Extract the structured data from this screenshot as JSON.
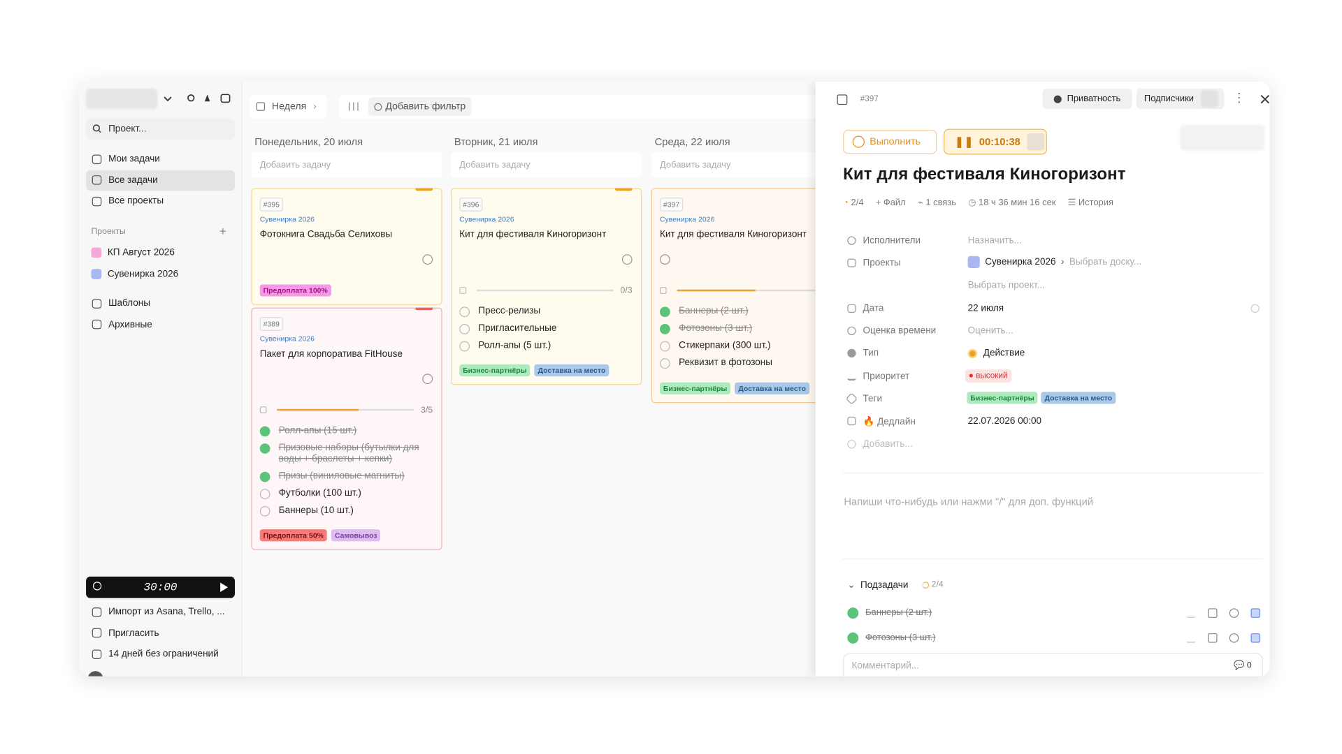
{
  "sidebar": {
    "search": "Проект...",
    "nav": [
      "Мои задачи",
      "Все задачи",
      "Все проекты"
    ],
    "projects_heading": "Проекты",
    "projects": [
      {
        "name": "КП Август 2026",
        "color": "#f6a8d8"
      },
      {
        "name": "Сувенирка 2026",
        "color": "#a9b8f0"
      }
    ],
    "extra": [
      "Шаблоны",
      "Архивные"
    ],
    "timer": "30:00",
    "footer": [
      "Импорт из Asana, Trello, ...",
      "Пригласить",
      "14 дней без ограничений"
    ]
  },
  "toolbar": {
    "view": "Неделя",
    "filter": "Добавить фильтр"
  },
  "columns": [
    {
      "day": "Понедельник, 20 июля",
      "add": "Добавить задачу",
      "cards": [
        {
          "id": "#395",
          "project": "Сувенирка 2026",
          "title": "Фотокнига Свадьба Селиховы",
          "subtasks": [],
          "tags": [
            {
              "text": "Предоплата 100%",
              "color": "#f59be6",
              "text_color": "#a4128a"
            }
          ]
        },
        {
          "id": "#389",
          "project": "Сувенирка 2026",
          "title": "Пакет для корпоратива FitHouse",
          "progress": "3/5",
          "subtasks": [
            {
              "text": "Ролл-апы (15 шт.)",
              "done": true
            },
            {
              "text": "Призовые наборы (бутылки для воды + браслеты + кепки)",
              "done": true
            },
            {
              "text": "Призы (виниловые магниты)",
              "done": true
            },
            {
              "text": "Футболки (100 шт.)",
              "done": false
            },
            {
              "text": "Баннеры (10 шт.)",
              "done": false
            }
          ],
          "tags": [
            {
              "text": "Предоплата 50%",
              "color": "#f47c7c",
              "text_color": "#7c0f0f"
            },
            {
              "text": "Самовывоз",
              "color": "#dcbdf0",
              "text_color": "#7b3fa4"
            }
          ]
        }
      ]
    },
    {
      "day": "Вторник, 21 июля",
      "add": "Добавить задачу",
      "cards": [
        {
          "id": "#396",
          "project": "Сувенирка 2026",
          "title": "Кит для фестиваля Киногоризонт",
          "progress": "0/3",
          "subtasks": [
            {
              "text": "Пресс-релизы",
              "done": false
            },
            {
              "text": "Пригласительные",
              "done": false
            },
            {
              "text": "Ролл-апы (5 шт.)",
              "done": false
            }
          ],
          "tags": [
            {
              "text": "Бизнес-партнёры",
              "color": "#aeeabd",
              "text_color": "#1f8a3e"
            },
            {
              "text": "Доставка на место",
              "color": "#aac9e9",
              "text_color": "#2a5a8a"
            }
          ]
        }
      ]
    },
    {
      "day": "Среда, 22 июля",
      "add": "Добавить задачу",
      "cards": [
        {
          "id": "#397",
          "project": "Сувенирка 2026",
          "title": "Кит для фестиваля Киногоризонт",
          "subtasks": [
            {
              "text": "Баннеры (2 шт.)",
              "done": true
            },
            {
              "text": "Фотозоны (3 шт.)",
              "done": true
            },
            {
              "text": "Стикерпаки (300 шт.)",
              "done": false
            },
            {
              "text": "Реквизит в фотозоны",
              "done": false
            }
          ],
          "tags": [
            {
              "text": "Бизнес-партнёры",
              "color": "#aeeabd",
              "text_color": "#1f8a3e"
            },
            {
              "text": "Доставка на место",
              "color": "#aac9e9",
              "text_color": "#2a5a8a"
            }
          ]
        }
      ]
    }
  ],
  "detail": {
    "id": "#397",
    "privacy": "Приватность",
    "subscribers": "Подписчики",
    "complete": "Выполнить",
    "timer": "00:10:38",
    "title": "Кит для фестиваля Киногоризонт",
    "meta": [
      "2/4",
      "Файл",
      "1 связь",
      "18 ч 36 мин 16 сек",
      "История"
    ],
    "assignees": {
      "label": "Исполнители",
      "value": "Назначить..."
    },
    "projects": {
      "label": "Проекты",
      "value": "Сувенирка 2026",
      "board": "Выбрать доску...",
      "more": "Выбрать проект..."
    },
    "date": {
      "label": "Дата",
      "value": "22 июля"
    },
    "estimate": {
      "label": "Оценка времени",
      "value": "Оценить..."
    },
    "type": {
      "label": "Тип",
      "value": "Действие"
    },
    "priority": {
      "label": "Приоритет",
      "value": "высокий"
    },
    "tags": {
      "label": "Теги",
      "values": [
        "Бизнес-партнёры",
        "Доставка на место"
      ]
    },
    "deadline": {
      "label": "Дедлайн",
      "value": "22.07.2026 00:00"
    },
    "add": "Добавить...",
    "editor_placeholder": "Напиши что-нибудь или нажми \"/\" для доп. функций",
    "subtasks_heading": "Подзадачи",
    "subtasks_count": "2/4",
    "subtasks": [
      "Баннеры (2 шт.)",
      "Фотозоны (3 шт.)"
    ],
    "comment_placeholder": "Комментарий...",
    "comment_count": "0"
  }
}
